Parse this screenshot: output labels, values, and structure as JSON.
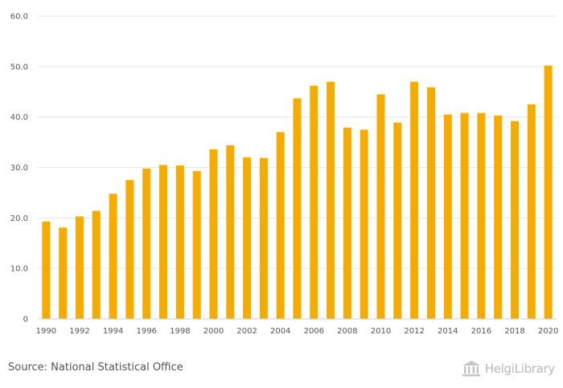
{
  "chart_data": {
    "type": "bar",
    "title": "",
    "xlabel": "",
    "ylabel": "",
    "categories": [
      "1990",
      "1991",
      "1992",
      "1993",
      "1994",
      "1995",
      "1996",
      "1997",
      "1998",
      "1999",
      "2000",
      "2001",
      "2002",
      "2003",
      "2004",
      "2005",
      "2006",
      "2007",
      "2008",
      "2009",
      "2010",
      "2011",
      "2012",
      "2013",
      "2014",
      "2015",
      "2016",
      "2017",
      "2018",
      "2019",
      "2020"
    ],
    "x_tick_labels": [
      "1990",
      "",
      "1992",
      "",
      "1994",
      "",
      "1996",
      "",
      "1998",
      "",
      "2000",
      "",
      "2002",
      "",
      "2004",
      "",
      "2006",
      "",
      "2008",
      "",
      "2010",
      "",
      "2012",
      "",
      "2014",
      "",
      "2016",
      "",
      "2018",
      "",
      "2020"
    ],
    "values": [
      19.3,
      18.1,
      20.3,
      21.4,
      24.8,
      27.5,
      29.8,
      30.5,
      30.4,
      29.3,
      33.6,
      34.4,
      32.0,
      31.9,
      37.0,
      43.7,
      46.2,
      47.0,
      37.9,
      37.5,
      44.5,
      38.9,
      47.0,
      45.9,
      40.5,
      40.8,
      40.8,
      40.3,
      39.2,
      42.5,
      50.2
    ],
    "ylim": [
      0,
      60
    ],
    "y_ticks": [
      0,
      10,
      20,
      30,
      40,
      50,
      60
    ],
    "y_tick_labels": [
      "0",
      "10.0",
      "20.0",
      "30.0",
      "40.0",
      "50.0",
      "60.0"
    ],
    "grid": true,
    "bar_color": "#f6ab00"
  },
  "footer": {
    "source": "Source: National Statistical Office",
    "brand": "HelgiLibrary"
  }
}
